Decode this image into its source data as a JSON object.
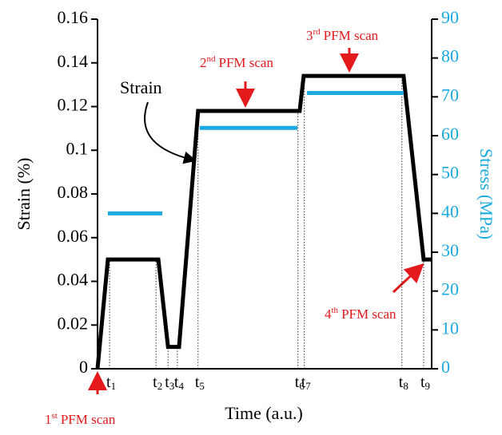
{
  "chart_data": {
    "type": "line",
    "x_label": "Time (a.u.)",
    "y_label": "Strain (%)",
    "y2_label": "Stress (MPa)",
    "xlim": [
      0,
      100
    ],
    "ylim": [
      0,
      0.16
    ],
    "yticks": [
      0,
      0.02,
      0.04,
      0.06,
      0.08,
      0.1,
      0.12,
      0.14,
      0.16
    ],
    "y2lim": [
      0,
      90
    ],
    "y2ticks": [
      0,
      10,
      20,
      30,
      40,
      50,
      60,
      70,
      80,
      90
    ],
    "series": [
      {
        "name": "Strain",
        "color": "#000000",
        "x": [
          0,
          3.1,
          18.2,
          21.1,
          24.4,
          30.1,
          60.5,
          61.7,
          91.6,
          97.6,
          100
        ],
        "values": [
          0,
          0.05,
          0.05,
          0.01,
          0.01,
          0.118,
          0.118,
          0.134,
          0.134,
          0.05,
          0.05
        ]
      },
      {
        "color": "#1aa9e0",
        "axis": "y2",
        "x": [
          3.1,
          19.4
        ],
        "values": [
          40,
          40
        ]
      },
      {
        "color": "#1aa9e0",
        "axis": "y2",
        "x": [
          30.6,
          59.8
        ],
        "values": [
          62,
          62
        ]
      },
      {
        "color": "#1aa9e0",
        "axis": "y2",
        "x": [
          62.7,
          91.6
        ],
        "values": [
          71,
          71
        ]
      }
    ],
    "time_marks": [
      {
        "x": 3.6,
        "base": "t",
        "sub": "1"
      },
      {
        "x": 17.5,
        "base": "t",
        "sub": "2"
      },
      {
        "x": 21.1,
        "base": "t",
        "sub": "3"
      },
      {
        "x": 23.9,
        "base": "t",
        "sub": "4"
      },
      {
        "x": 30.1,
        "base": "t",
        "sub": "5"
      },
      {
        "x": 60.0,
        "base": "t",
        "sub": "6"
      },
      {
        "x": 61.9,
        "base": "t",
        "sub": "7"
      },
      {
        "x": 91.1,
        "base": "t",
        "sub": "8"
      },
      {
        "x": 97.6,
        "base": "t",
        "sub": "9"
      }
    ],
    "strain_annotation": "Strain",
    "annotations": [
      {
        "num": "1",
        "sup": "st",
        "text": "PFM scan"
      },
      {
        "num": "2",
        "sup": "nd",
        "text": "PFM scan"
      },
      {
        "num": "3",
        "sup": "rd",
        "text": "PFM scan"
      },
      {
        "num": "4",
        "sup": "th",
        "text": "PFM scan"
      }
    ]
  }
}
